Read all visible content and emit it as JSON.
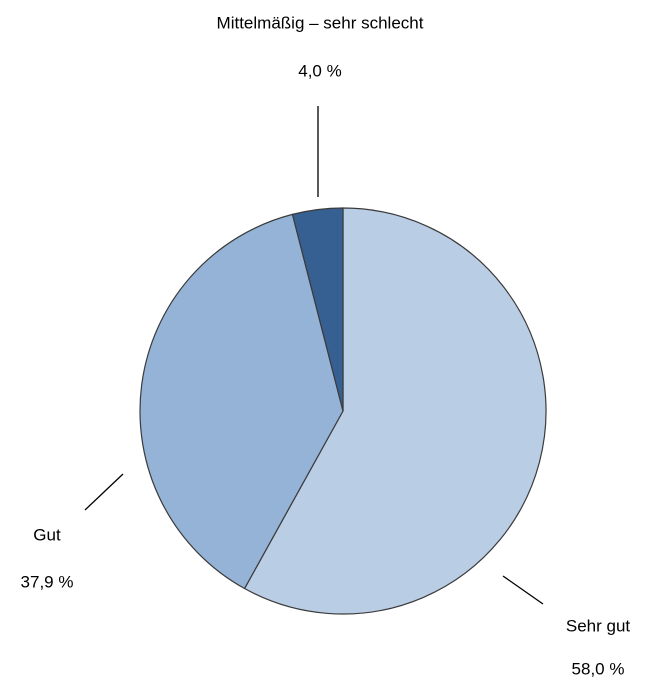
{
  "chart_data": {
    "type": "pie",
    "categories": [
      "Sehr gut",
      "Gut",
      "Mittelmäßig – sehr schlecht"
    ],
    "values": [
      58.0,
      37.9,
      4.0
    ],
    "value_labels": [
      "58,0 %",
      "37,9 %",
      "4,0 %"
    ],
    "colors": [
      "#b9cde5",
      "#95b3d7",
      "#376092"
    ]
  }
}
